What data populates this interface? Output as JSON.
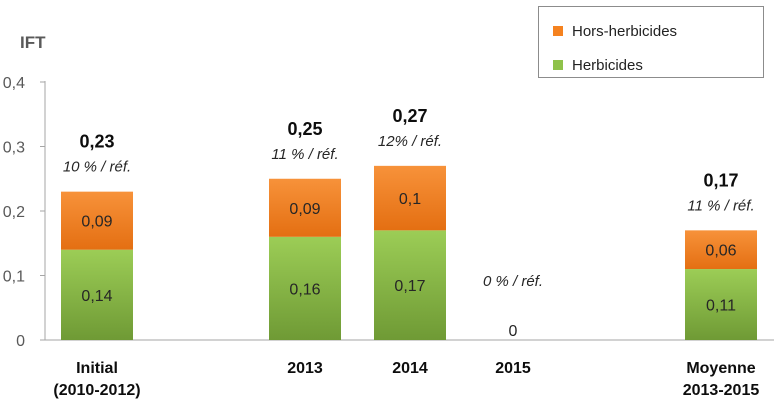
{
  "chart_data": {
    "type": "bar",
    "stacked": true,
    "ylabel": "IFT",
    "ylim": [
      0,
      0.4
    ],
    "yticks": [
      "0",
      "0,1",
      "0,2",
      "0,3",
      "0,4"
    ],
    "grid": false,
    "legend_position": "top-right",
    "categories": [
      [
        "Initial",
        "(2010-2012)"
      ],
      [
        "2013"
      ],
      [
        "2014"
      ],
      [
        "2015"
      ],
      [
        "Moyenne",
        "2013-2015"
      ]
    ],
    "series": [
      {
        "name": "Herbicides",
        "color": "#8fc24a",
        "values": [
          0.14,
          0.16,
          0.17,
          0,
          0.11
        ],
        "labels": [
          "0,14",
          "0,16",
          "0,17",
          "",
          "0,11"
        ]
      },
      {
        "name": "Hors-herbicides",
        "color": "#f5821f",
        "values": [
          0.09,
          0.09,
          0.1,
          0,
          0.06
        ],
        "labels": [
          "0,09",
          "0,09",
          "0,1",
          "",
          "0,06"
        ]
      }
    ],
    "totals": [
      "0,23",
      "0,25",
      "0,27",
      "0",
      "0,17"
    ],
    "annotations": [
      "10 % / réf.",
      "11 % / réf.",
      "12% / réf.",
      "0 % / réf.",
      "11 % / réf."
    ]
  }
}
